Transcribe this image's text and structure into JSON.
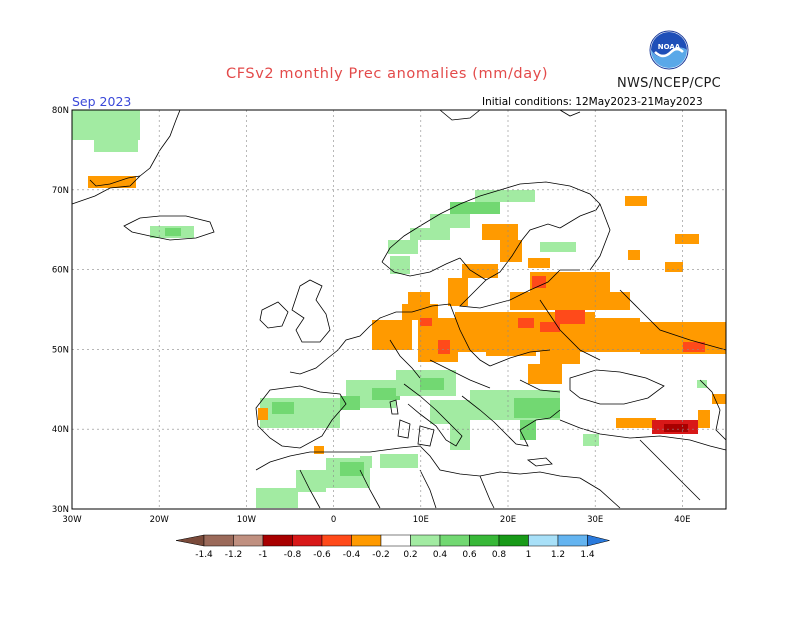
{
  "header": {
    "title": "CFSv2 monthly Prec anomalies (mm/day)",
    "org": "NWS/NCEP/CPC",
    "period": "Sep 2023",
    "initial_conditions": "Initial conditions: 12May2023-21May2023",
    "logo_text": "NOAA"
  },
  "axes": {
    "lon_ticks": [
      "30W",
      "20W",
      "10W",
      "0",
      "10E",
      "20E",
      "30E",
      "40E"
    ],
    "lat_ticks": [
      "80N",
      "70N",
      "60N",
      "50N",
      "40N",
      "30N"
    ],
    "lon_range": [
      -30,
      45
    ],
    "lat_range": [
      30,
      80
    ]
  },
  "colorbar": {
    "labels": [
      "-1.4",
      "-1.2",
      "-1",
      "-0.8",
      "-0.6",
      "-0.4",
      "-0.2",
      "0.2",
      "0.4",
      "0.6",
      "0.8",
      "1",
      "1.2",
      "1.4"
    ],
    "colors": [
      "#7a4a3a",
      "#9b6a5a",
      "#c09080",
      "#a80000",
      "#d81818",
      "#ff4a1a",
      "#ff9a00",
      "#ffffff",
      "#a2eba2",
      "#72d872",
      "#38b838",
      "#189a18",
      "#a8e0f8",
      "#64b4f0",
      "#2a7adc"
    ]
  }
}
